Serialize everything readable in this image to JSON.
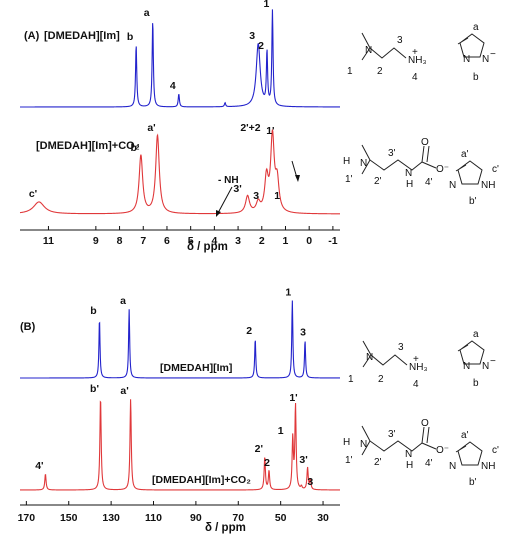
{
  "chart_data": [
    {
      "type": "line",
      "panel_label": "(A)",
      "xlabel": "δ / ppm",
      "xlim": [
        12.2,
        -1.3
      ],
      "xticks": [
        11,
        9,
        8,
        7,
        6,
        5,
        4,
        3,
        2,
        1,
        0,
        -1
      ],
      "xtick_labels": [
        "11",
        "9",
        "8",
        "7",
        "6",
        "5",
        "4",
        "3",
        "2",
        "1",
        "0",
        "-1"
      ],
      "series": [
        {
          "name": "[DMEDAH][Im]",
          "color": "#2323cc",
          "peaks": [
            {
              "label": "b",
              "x": 7.3,
              "height": 0.62
            },
            {
              "label": "a",
              "x": 6.6,
              "height": 0.86
            },
            {
              "label": "4",
              "x": 5.5,
              "height": 0.13
            },
            {
              "label": "",
              "x": 3.55,
              "height": 0.04
            },
            {
              "label": "3",
              "x": 2.15,
              "height": 0.63
            },
            {
              "label": "2",
              "x": 1.78,
              "height": 0.53
            },
            {
              "label": "1",
              "x": 1.55,
              "height": 0.95
            }
          ]
        },
        {
          "name": "[DMEDAH][Im]+CO₂",
          "color": "#e0383a",
          "peaks": [
            {
              "label": "c'",
              "x": 11.4,
              "height": 0.12
            },
            {
              "label": "b'",
              "x": 7.1,
              "height": 0.58
            },
            {
              "label": "a'",
              "x": 6.4,
              "height": 0.78
            },
            {
              "label": "3'",
              "x": 2.6,
              "height": 0.17
            },
            {
              "label": "3",
              "x": 2.15,
              "height": 0.1
            },
            {
              "label": "2'+2",
              "x": 1.8,
              "height": 0.34
            },
            {
              "label": "1'",
              "x": 1.55,
              "height": 0.75
            },
            {
              "label": "1",
              "x": 1.35,
              "height": 0.3
            }
          ],
          "annotation": "- NH"
        }
      ]
    },
    {
      "type": "line",
      "panel_label": "(B)",
      "xlabel": "δ / ppm",
      "xlim": [
        173,
        22
      ],
      "xticks": [
        170,
        150,
        130,
        110,
        90,
        70,
        50,
        30
      ],
      "xtick_labels": [
        "170",
        "150",
        "130",
        "110",
        "90",
        "70",
        "50",
        "30"
      ],
      "series": [
        {
          "name": "[DMEDAH][Im]",
          "color": "#2323cc",
          "peaks": [
            {
              "label": "b",
              "x": 135.5,
              "height": 0.74
            },
            {
              "label": "a",
              "x": 121.5,
              "height": 0.86
            },
            {
              "label": "2",
              "x": 62.0,
              "height": 0.49
            },
            {
              "label": "1",
              "x": 44.5,
              "height": 0.97
            },
            {
              "label": "3",
              "x": 38.5,
              "height": 0.47
            }
          ]
        },
        {
          "name": "[DMEDAH][Im]+CO₂",
          "color": "#e0383a",
          "peaks": [
            {
              "label": "4'",
              "x": 161.0,
              "height": 0.16
            },
            {
              "label": "b'",
              "x": 135.0,
              "height": 0.93
            },
            {
              "label": "a'",
              "x": 120.8,
              "height": 0.91
            },
            {
              "label": "2'",
              "x": 57.5,
              "height": 0.33
            },
            {
              "label": "2",
              "x": 55.5,
              "height": 0.19
            },
            {
              "label": "1",
              "x": 44.3,
              "height": 0.51
            },
            {
              "label": "1'",
              "x": 43.0,
              "height": 0.84
            },
            {
              "label": "",
              "x": 40.2,
              "height": 0.03
            },
            {
              "label": "3'",
              "x": 37.3,
              "height": 0.22
            },
            {
              "label": "3",
              "x": 36.0,
              "height": 0.1
            }
          ]
        }
      ]
    }
  ],
  "structures": {
    "amine_numbers": [
      "1",
      "2",
      "3",
      "4"
    ],
    "amine_group": "NH₃",
    "amine_charge": "+",
    "imidazolate_labels": [
      "a",
      "b"
    ],
    "imidazolate_charge": "−",
    "carbamate_numbers": [
      "1'",
      "2'",
      "3'",
      "4'"
    ],
    "carbamate_group": "O",
    "carbamate_charge": "O⁻",
    "carbamate_nh": "H",
    "carbamate_h": "H",
    "imidazole_labels": [
      "a'",
      "b'",
      "c'"
    ],
    "imidazole_nh": "NH",
    "atom_n": "N"
  }
}
